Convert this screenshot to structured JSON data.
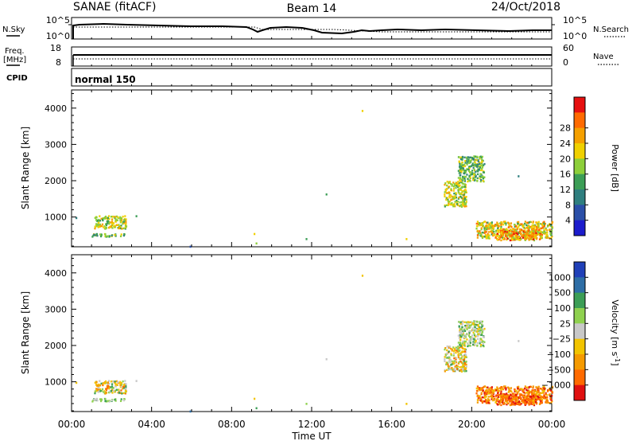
{
  "header": {
    "station": "SANAE (fitACF)",
    "beam": "Beam 14",
    "date": "24/Oct/2018"
  },
  "noise_panel": {
    "left_label": "N.Sky",
    "right_label": "N.Search",
    "left_ticks": [
      "10^5",
      "10^0"
    ],
    "right_ticks": [
      "10^5",
      "10^0"
    ],
    "legend_style": "dotted"
  },
  "freq_panel": {
    "left_label_line1": "Freq.",
    "left_label_line2": "[MHz]",
    "right_label": "Nave",
    "left_ticks": [
      "18",
      "8"
    ],
    "right_ticks": [
      "60",
      "0"
    ],
    "legend_style": "dotted"
  },
  "cpid_panel": {
    "label": "CPID",
    "program": "normal 150"
  },
  "colors": {
    "power": [
      "#1c1ccc",
      "#2b4fa8",
      "#2f7f7f",
      "#3c9e56",
      "#8dcf3a",
      "#f0d000",
      "#f5a000",
      "#ff6a00",
      "#e61010"
    ],
    "velocity": [
      "#e01010",
      "#ff6a00",
      "#f59a00",
      "#f2c400",
      "#c8c8c8",
      "#8fd14f",
      "#3c9e56",
      "#2e6ea6",
      "#2040b8"
    ]
  },
  "chart_data": [
    {
      "type": "heatmap",
      "name": "power",
      "ylabel": "Slant Range [km]",
      "yticks": [
        1000,
        2000,
        3000,
        4000
      ],
      "ylim": [
        180,
        4500
      ],
      "xlim": [
        0,
        24
      ],
      "colorbar": {
        "label": "Power [dB]",
        "ticks": [
          "4",
          "8",
          "12",
          "16",
          "20",
          "24",
          "28"
        ]
      },
      "clusters": [
        {
          "t": [
            1.1,
            2.7
          ],
          "r": [
            700,
            1050
          ],
          "level_power": [
            3,
            6
          ],
          "level_velocity": [
            1,
            6
          ]
        },
        {
          "t": [
            1.0,
            2.8
          ],
          "r": [
            480,
            560
          ],
          "level_power": [
            2,
            5
          ],
          "level_velocity": [
            4,
            6
          ]
        },
        {
          "t": [
            18.6,
            19.7
          ],
          "r": [
            1300,
            2000
          ],
          "level_power": [
            3,
            6
          ],
          "level_velocity": [
            1,
            6
          ]
        },
        {
          "t": [
            19.3,
            20.6
          ],
          "r": [
            2000,
            2700
          ],
          "level_power": [
            2,
            5
          ],
          "level_velocity": [
            3,
            6
          ]
        },
        {
          "t": [
            20.2,
            24.0
          ],
          "r": [
            430,
            900
          ],
          "level_power": [
            3,
            7
          ],
          "level_velocity": [
            0,
            3
          ]
        },
        {
          "t": [
            21.2,
            23.4
          ],
          "r": [
            380,
            700
          ],
          "level_power": [
            4,
            8
          ],
          "level_velocity": [
            0,
            2
          ]
        }
      ],
      "isolated_points": [
        {
          "t": 0.2,
          "r": 1000,
          "level_power": 2,
          "level_velocity": 3
        },
        {
          "t": 3.2,
          "r": 1050,
          "level_power": 3,
          "level_velocity": 4
        },
        {
          "t": 9.1,
          "r": 560,
          "level_power": 5,
          "level_velocity": 3
        },
        {
          "t": 9.2,
          "r": 300,
          "level_power": 4,
          "level_velocity": 6
        },
        {
          "t": 12.7,
          "r": 1650,
          "level_power": 3,
          "level_velocity": 4
        },
        {
          "t": 14.5,
          "r": 3950,
          "level_power": 5,
          "level_velocity": 3
        },
        {
          "t": 11.7,
          "r": 420,
          "level_power": 3,
          "level_velocity": 5
        },
        {
          "t": 22.3,
          "r": 2150,
          "level_power": 2,
          "level_velocity": 4
        },
        {
          "t": 5.9,
          "r": 210,
          "level_power": 1,
          "level_velocity": 7
        },
        {
          "t": 16.7,
          "r": 420,
          "level_power": 5,
          "level_velocity": 3
        }
      ]
    },
    {
      "type": "heatmap",
      "name": "velocity",
      "ylabel": "Slant Range [km]",
      "yticks": [
        1000,
        2000,
        3000,
        4000
      ],
      "ylim": [
        180,
        4500
      ],
      "xlim": [
        0,
        24
      ],
      "xlabel": "Time UT",
      "xticks": [
        "00:00",
        "04:00",
        "08:00",
        "12:00",
        "16:00",
        "20:00",
        "00:00"
      ],
      "colorbar": {
        "label": "Velocity [m s",
        "label_exp": "-1",
        "label_close": "]",
        "ticks": [
          "1000",
          "500",
          "100",
          "25",
          "−25",
          "−100",
          "−500",
          "−1000"
        ]
      }
    }
  ]
}
